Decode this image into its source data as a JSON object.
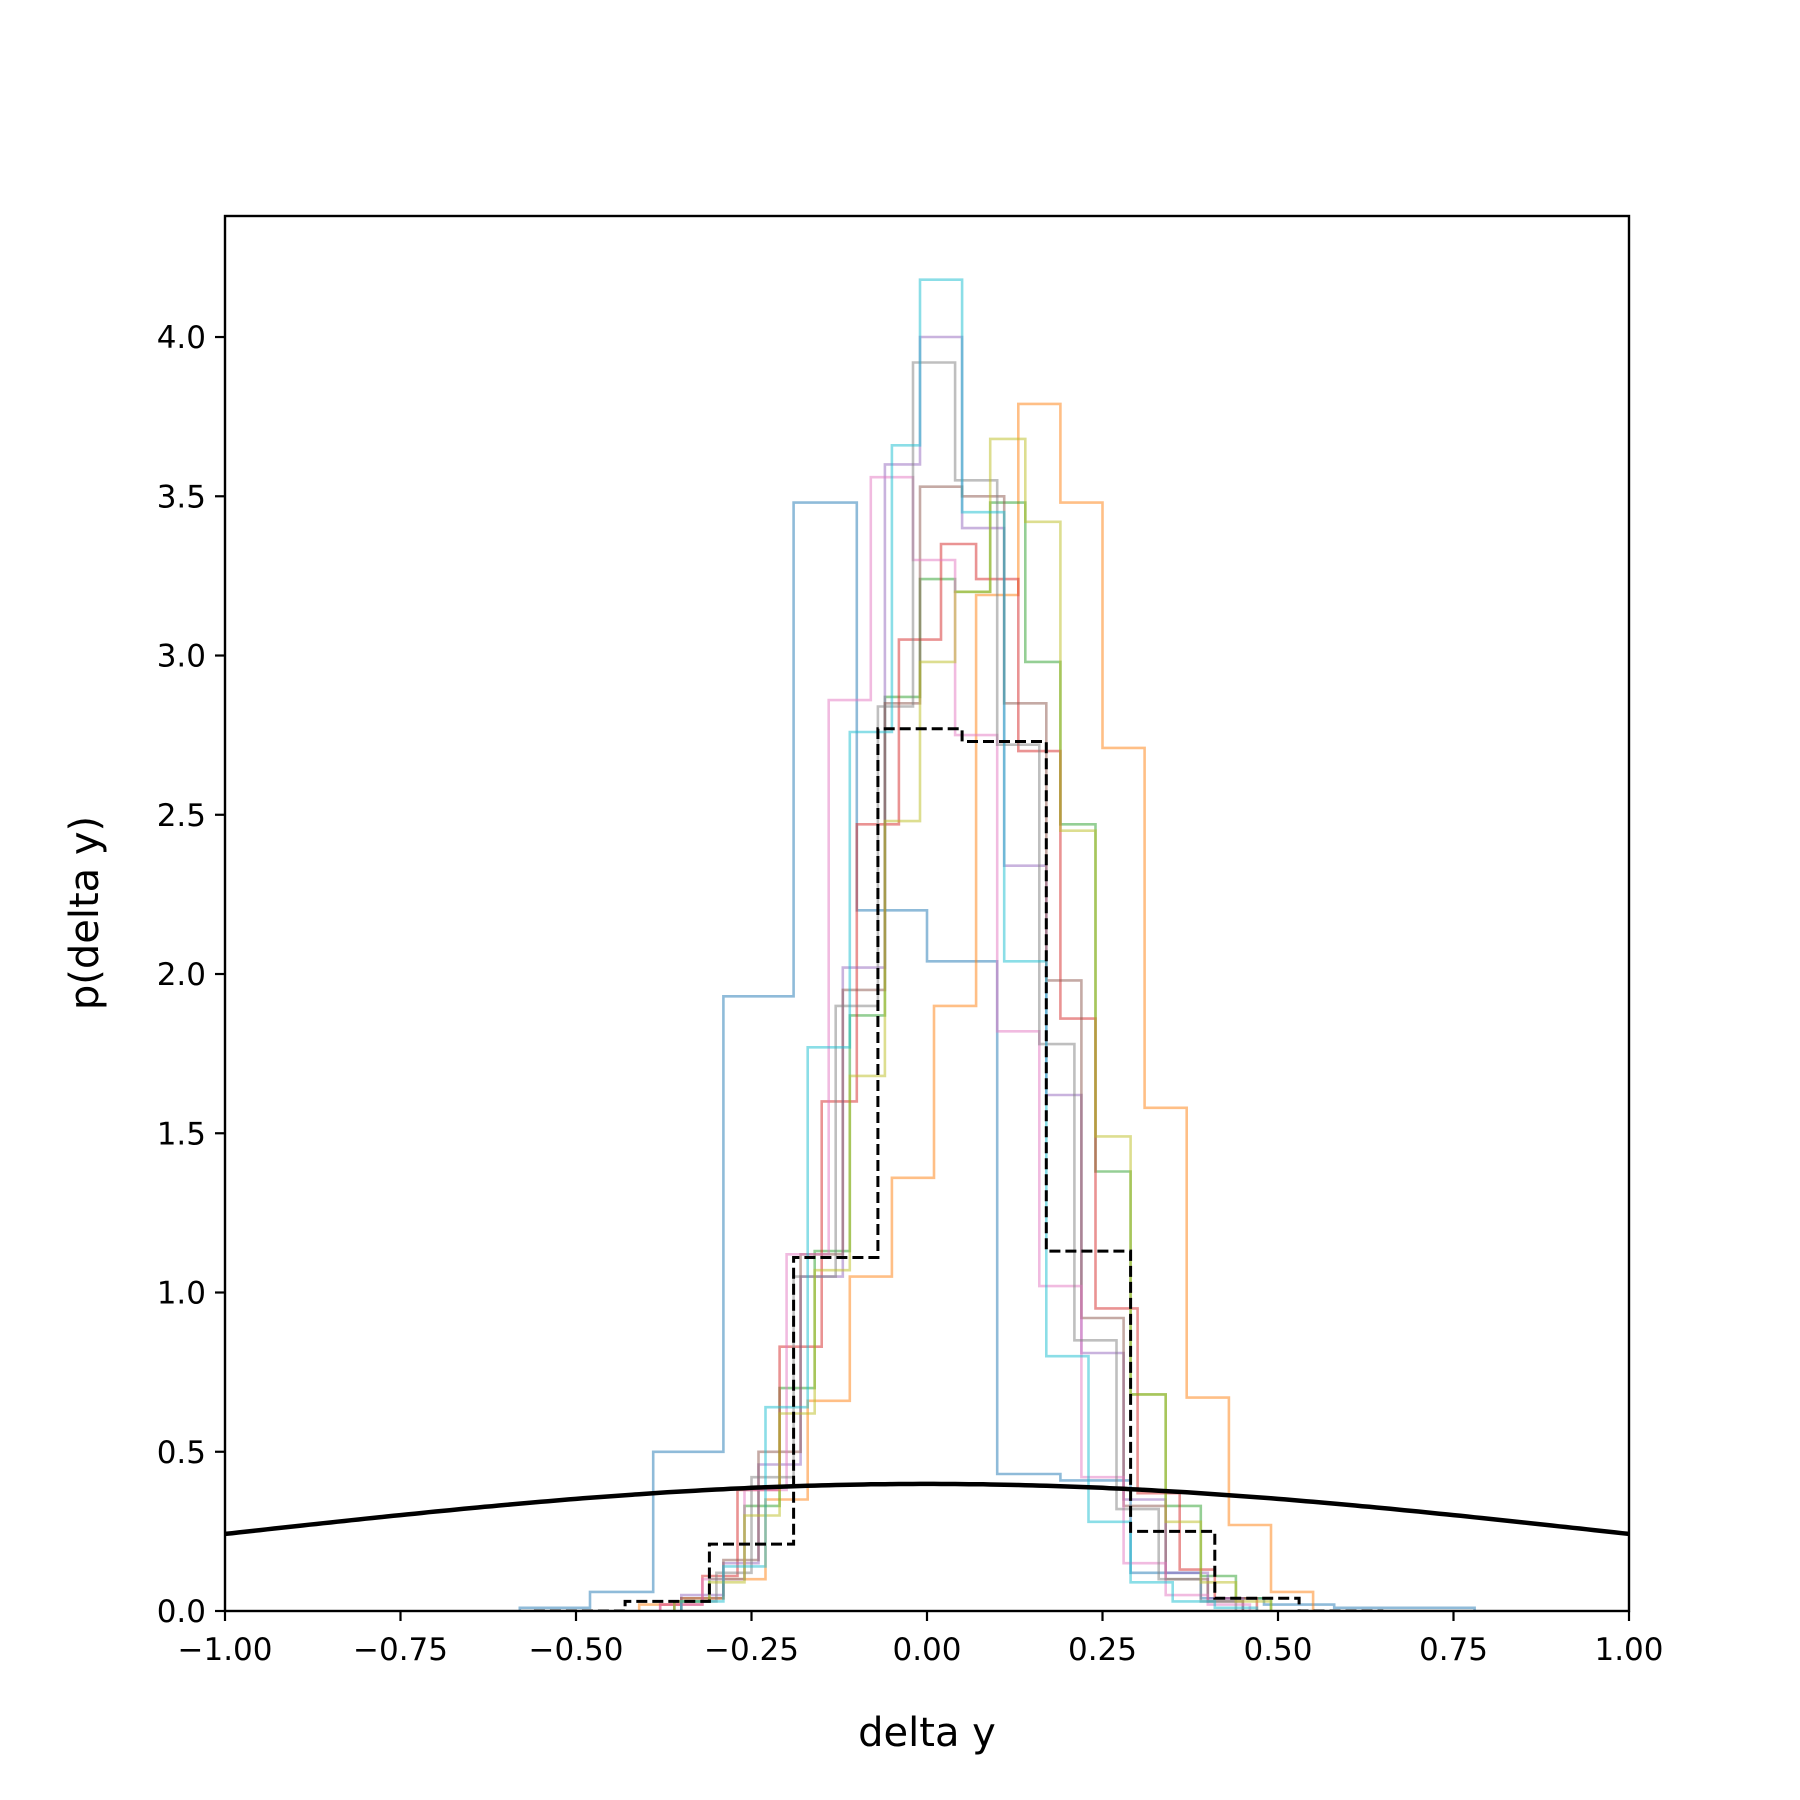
{
  "chart_data": {
    "type": "step-histogram",
    "xlabel": "delta y",
    "ylabel": "p(delta y)",
    "xlim": [
      -1.0,
      1.0
    ],
    "ylim": [
      0.0,
      4.38
    ],
    "xticks": [
      -1.0,
      -0.75,
      -0.5,
      -0.25,
      0.0,
      0.25,
      0.5,
      0.75,
      1.0
    ],
    "xtick_labels": [
      "−1.00",
      "−0.75",
      "−0.50",
      "−0.25",
      "0.00",
      "0.25",
      "0.50",
      "0.75",
      "1.00"
    ],
    "yticks": [
      0.0,
      0.5,
      1.0,
      1.5,
      2.0,
      2.5,
      3.0,
      3.5,
      4.0
    ],
    "ytick_labels": [
      "0.0",
      "0.5",
      "1.0",
      "1.5",
      "2.0",
      "2.5",
      "3.0",
      "3.5",
      "4.0"
    ],
    "grid": false,
    "legend": "none",
    "series": [
      {
        "color": "#1f77b4",
        "alpha": 0.5,
        "edges": [
          -0.58,
          -0.48,
          -0.39,
          -0.29,
          -0.19,
          -0.1,
          0.0,
          0.1,
          0.19,
          0.29,
          0.39,
          0.48,
          0.58,
          0.68,
          0.78
        ],
        "values": [
          0.01,
          0.06,
          0.5,
          1.93,
          3.48,
          2.2,
          2.04,
          0.43,
          0.41,
          0.12,
          0.04,
          0.02,
          0.01,
          0.01
        ]
      },
      {
        "color": "#ff7f0e",
        "alpha": 0.5,
        "edges": [
          -0.41,
          -0.35,
          -0.29,
          -0.23,
          -0.17,
          -0.11,
          -0.05,
          0.01,
          0.07,
          0.13,
          0.19,
          0.25,
          0.31,
          0.37,
          0.43,
          0.49,
          0.55
        ],
        "values": [
          0.02,
          0.04,
          0.1,
          0.35,
          0.66,
          1.05,
          1.36,
          1.9,
          3.19,
          3.79,
          3.48,
          2.71,
          1.58,
          0.67,
          0.27,
          0.06
        ]
      },
      {
        "color": "#2ca02c",
        "alpha": 0.5,
        "edges": [
          -0.36,
          -0.31,
          -0.26,
          -0.21,
          -0.16,
          -0.11,
          -0.06,
          -0.01,
          0.04,
          0.09,
          0.14,
          0.19,
          0.24,
          0.29,
          0.34,
          0.39,
          0.44,
          0.49
        ],
        "values": [
          0.03,
          0.1,
          0.33,
          0.7,
          1.13,
          1.87,
          2.87,
          3.24,
          3.2,
          3.48,
          2.98,
          2.47,
          1.38,
          0.68,
          0.33,
          0.11,
          0.04
        ]
      },
      {
        "color": "#d62728",
        "alpha": 0.5,
        "edges": [
          -0.38,
          -0.32,
          -0.27,
          -0.21,
          -0.15,
          -0.1,
          -0.04,
          0.02,
          0.07,
          0.13,
          0.19,
          0.24,
          0.3,
          0.36,
          0.41,
          0.47
        ],
        "values": [
          0.02,
          0.11,
          0.38,
          0.83,
          1.6,
          2.47,
          3.05,
          3.35,
          3.24,
          2.7,
          1.86,
          0.95,
          0.37,
          0.13,
          0.04
        ]
      },
      {
        "color": "#9467bd",
        "alpha": 0.5,
        "edges": [
          -0.35,
          -0.29,
          -0.24,
          -0.18,
          -0.12,
          -0.06,
          -0.01,
          0.05,
          0.11,
          0.17,
          0.22,
          0.28,
          0.34,
          0.4,
          0.45
        ],
        "values": [
          0.05,
          0.15,
          0.46,
          1.05,
          2.02,
          3.6,
          4.0,
          3.4,
          2.34,
          1.62,
          0.81,
          0.35,
          0.12,
          0.04
        ]
      },
      {
        "color": "#8c564b",
        "alpha": 0.5,
        "edges": [
          -0.35,
          -0.29,
          -0.24,
          -0.18,
          -0.12,
          -0.06,
          -0.01,
          0.05,
          0.11,
          0.17,
          0.22,
          0.28,
          0.34,
          0.4,
          0.45
        ],
        "values": [
          0.04,
          0.16,
          0.5,
          1.12,
          1.95,
          2.85,
          3.53,
          3.5,
          2.85,
          1.98,
          0.92,
          0.33,
          0.1,
          0.03
        ]
      },
      {
        "color": "#e377c2",
        "alpha": 0.5,
        "edges": [
          -0.38,
          -0.32,
          -0.26,
          -0.2,
          -0.14,
          -0.08,
          -0.02,
          0.04,
          0.1,
          0.16,
          0.22,
          0.28,
          0.34,
          0.4,
          0.46
        ],
        "values": [
          0.02,
          0.1,
          0.38,
          1.12,
          2.86,
          3.56,
          3.3,
          2.75,
          1.82,
          1.02,
          0.42,
          0.15,
          0.05,
          0.02
        ]
      },
      {
        "color": "#7f7f7f",
        "alpha": 0.5,
        "edges": [
          -0.36,
          -0.3,
          -0.25,
          -0.19,
          -0.13,
          -0.07,
          -0.02,
          0.04,
          0.1,
          0.16,
          0.21,
          0.27,
          0.33,
          0.39,
          0.44
        ],
        "values": [
          0.03,
          0.12,
          0.42,
          1.05,
          1.9,
          2.84,
          3.92,
          3.55,
          2.72,
          1.78,
          0.85,
          0.32,
          0.1,
          0.03
        ]
      },
      {
        "color": "#bcbd22",
        "alpha": 0.5,
        "edges": [
          -0.36,
          -0.31,
          -0.26,
          -0.21,
          -0.16,
          -0.11,
          -0.06,
          -0.01,
          0.04,
          0.09,
          0.14,
          0.19,
          0.24,
          0.29,
          0.34,
          0.39,
          0.44,
          0.49
        ],
        "values": [
          0.03,
          0.09,
          0.3,
          0.62,
          1.07,
          1.68,
          2.48,
          2.98,
          3.2,
          3.68,
          3.42,
          2.45,
          1.49,
          0.68,
          0.28,
          0.09,
          0.03
        ]
      },
      {
        "color": "#17becf",
        "alpha": 0.5,
        "edges": [
          -0.35,
          -0.29,
          -0.23,
          -0.17,
          -0.11,
          -0.05,
          -0.01,
          0.05,
          0.11,
          0.17,
          0.23,
          0.29,
          0.35,
          0.41,
          0.47
        ],
        "values": [
          0.03,
          0.14,
          0.64,
          1.77,
          2.76,
          3.66,
          4.18,
          3.45,
          2.04,
          0.8,
          0.28,
          0.09,
          0.03,
          0.01
        ]
      }
    ],
    "reference_histogram": {
      "color": "#000000",
      "style": "dashed",
      "edges": [
        -0.56,
        -0.43,
        -0.31,
        -0.19,
        -0.07,
        0.05,
        0.17,
        0.29,
        0.41,
        0.53,
        0.65
      ],
      "values": [
        0.0,
        0.03,
        0.21,
        1.11,
        2.77,
        2.73,
        1.13,
        0.25,
        0.04,
        0.0
      ]
    },
    "reference_curve": {
      "color": "#000000",
      "style": "solid",
      "function": "normal_pdf",
      "mean": 0.0,
      "std": 1.0
    }
  }
}
